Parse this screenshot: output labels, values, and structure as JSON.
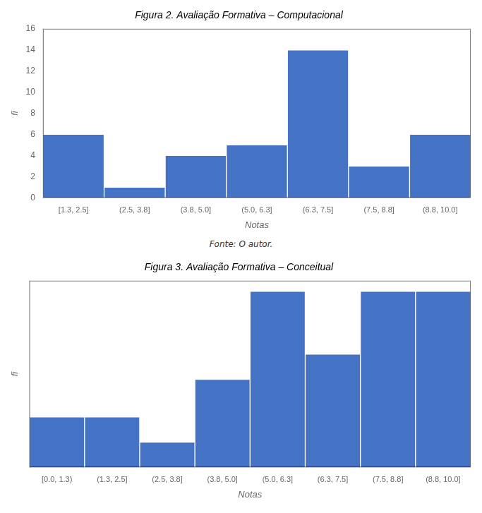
{
  "chart_data": [
    {
      "type": "bar",
      "title": "Figura 2. Avaliação Formativa – Computacional",
      "xlabel": "Notas",
      "ylabel": "fi",
      "categories": [
        "[1.3, 2.5]",
        "(2.5, 3.8]",
        "(3.8, 5.0]",
        "(5.0, 6.3]",
        "(6.3, 7.5]",
        "(7.5, 8.8]",
        "(8.8, 10.0]"
      ],
      "values": [
        6,
        1,
        4,
        5,
        14,
        3,
        6
      ],
      "color": "#4472C4",
      "ylim": [
        0,
        16
      ],
      "yticks": [
        0,
        2,
        4,
        6,
        8,
        10,
        12,
        14,
        16
      ],
      "grid": false,
      "annotations": [
        "Fonte: O autor."
      ]
    },
    {
      "type": "bar",
      "title": "Figura 3. Avaliação Formativa – Conceitual",
      "xlabel": "Notas",
      "ylabel": "fi",
      "categories": [
        "[0.0, 1.3)",
        "(1.3, 2.5]",
        "(2.5, 3.8]",
        "(3.8, 5.0]",
        "(5.0, 6.3]",
        "(6.3, 7.5]",
        "(7.5, 8.8]",
        "(8.8, 10.0]"
      ],
      "values": [
        4,
        4,
        2,
        7,
        14,
        9,
        14,
        14
      ],
      "color": "#4472C4",
      "ylim": [
        0,
        14.84
      ],
      "grid": false,
      "tick_labels": "x"
    }
  ]
}
